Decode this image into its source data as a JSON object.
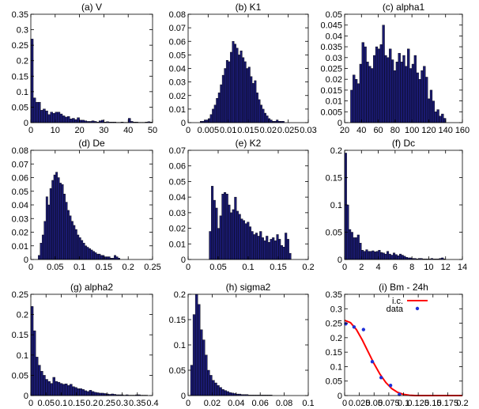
{
  "figure": {
    "background": "#ffffff",
    "bar_fill": "#1a1a70",
    "bar_stroke": "#000000",
    "curve_color": "#ff0000",
    "point_color": "#1f2fd8"
  },
  "chart_data": [
    {
      "type": "bar",
      "title": "(a) V",
      "xlim": [
        0,
        50
      ],
      "ylim": [
        0,
        0.35
      ],
      "xticks": [
        0,
        10,
        20,
        30,
        40,
        50
      ],
      "xtick_labels": [
        "0",
        "10",
        "20",
        "30",
        "40",
        "50"
      ],
      "yticks": [
        0,
        0.05,
        0.1,
        0.15,
        0.2,
        0.25,
        0.3,
        0.35
      ],
      "ytick_labels": [
        "0",
        "0.05",
        "0.1",
        "0.15",
        "0.2",
        "0.25",
        "0.3",
        "0.35"
      ],
      "bin_start": 0,
      "bin_width": 1,
      "values": [
        0.27,
        0.08,
        0.066,
        0.066,
        0.04,
        0.044,
        0.038,
        0.026,
        0.034,
        0.03,
        0.034,
        0.034,
        0.028,
        0.022,
        0.018,
        0.02,
        0.012,
        0.014,
        0.01,
        0.016,
        0.008,
        0.008,
        0.006,
        0.004,
        0.004,
        0.006,
        0.004,
        0.002,
        0.006,
        0.008,
        0.002,
        0.003,
        0.002,
        0.002,
        0.002,
        0.001,
        0.001,
        0.002,
        0.001,
        0.001,
        0.014,
        0.004,
        0.002,
        0.002,
        0.001,
        0.001,
        0.001,
        0.002,
        0.003,
        0.002
      ]
    },
    {
      "type": "bar",
      "title": "(b) K1",
      "xlim": [
        0,
        0.03
      ],
      "ylim": [
        0,
        0.08
      ],
      "xticks": [
        0,
        0.005,
        0.01,
        0.015,
        0.02,
        0.025,
        0.03
      ],
      "xtick_labels": [
        "0",
        "0.005",
        "0.01",
        "0.015",
        "0.02",
        "0.025",
        "0.03"
      ],
      "yticks": [
        0,
        0.01,
        0.02,
        0.03,
        0.04,
        0.05,
        0.06,
        0.07,
        0.08
      ],
      "ytick_labels": [
        "0",
        "0.01",
        "0.02",
        "0.03",
        "0.04",
        "0.05",
        "0.06",
        "0.07",
        "0.08"
      ],
      "bin_start": 0.003,
      "bin_width": 0.0005,
      "values": [
        0.001,
        0.001,
        0.002,
        0.002,
        0.003,
        0.006,
        0.01,
        0.013,
        0.018,
        0.022,
        0.028,
        0.035,
        0.04,
        0.046,
        0.045,
        0.052,
        0.06,
        0.058,
        0.055,
        0.05,
        0.053,
        0.048,
        0.045,
        0.04,
        0.041,
        0.034,
        0.029,
        0.031,
        0.022,
        0.017,
        0.013,
        0.01,
        0.007,
        0.005,
        0.003,
        0.002,
        0.001,
        0.001,
        0.002,
        0.001,
        0.001,
        0.001
      ]
    },
    {
      "type": "bar",
      "title": "(c) alpha1",
      "xlim": [
        20,
        160
      ],
      "ylim": [
        0,
        0.05
      ],
      "xticks": [
        20,
        40,
        60,
        80,
        100,
        120,
        140,
        160
      ],
      "xtick_labels": [
        "20",
        "40",
        "60",
        "80",
        "100",
        "120",
        "140",
        "160"
      ],
      "yticks": [
        0,
        0.005,
        0.01,
        0.015,
        0.02,
        0.025,
        0.03,
        0.035,
        0.04,
        0.045,
        0.05
      ],
      "ytick_labels": [
        "0",
        "0.005",
        "0.01",
        "0.015",
        "0.02",
        "0.025",
        "0.03",
        "0.035",
        "0.04",
        "0.045",
        "0.05"
      ],
      "bin_start": 27,
      "bin_width": 2.7,
      "values": [
        0.015,
        0.022,
        0.02,
        0.018,
        0.027,
        0.037,
        0.035,
        0.028,
        0.026,
        0.025,
        0.031,
        0.035,
        0.034,
        0.036,
        0.045,
        0.031,
        0.03,
        0.034,
        0.029,
        0.024,
        0.028,
        0.032,
        0.028,
        0.031,
        0.026,
        0.034,
        0.025,
        0.027,
        0.031,
        0.023,
        0.02,
        0.024,
        0.026,
        0.021,
        0.011,
        0.015,
        0.01,
        0.005,
        0.006,
        0.003,
        0.004,
        0.002
      ]
    },
    {
      "type": "bar",
      "title": "(d) De",
      "xlim": [
        0,
        0.25
      ],
      "ylim": [
        0,
        0.08
      ],
      "xticks": [
        0,
        0.05,
        0.1,
        0.15,
        0.2,
        0.25
      ],
      "xtick_labels": [
        "0",
        "0.05",
        "0.1",
        "0.15",
        "0.2",
        "0.25"
      ],
      "yticks": [
        0,
        0.01,
        0.02,
        0.03,
        0.04,
        0.05,
        0.06,
        0.07,
        0.08
      ],
      "ytick_labels": [
        "0",
        "0.01",
        "0.02",
        "0.03",
        "0.04",
        "0.05",
        "0.06",
        "0.07",
        "0.08"
      ],
      "bin_start": 0.015,
      "bin_width": 0.004,
      "values": [
        0.003,
        0.012,
        0.018,
        0.028,
        0.046,
        0.04,
        0.052,
        0.058,
        0.062,
        0.064,
        0.06,
        0.056,
        0.055,
        0.048,
        0.042,
        0.036,
        0.032,
        0.028,
        0.025,
        0.022,
        0.018,
        0.016,
        0.014,
        0.012,
        0.01,
        0.009,
        0.008,
        0.007,
        0.006,
        0.005,
        0.004,
        0.004,
        0.003,
        0.003,
        0.002,
        0.002,
        0.002,
        0.001,
        0.001,
        0.003,
        0.002,
        0.001
      ]
    },
    {
      "type": "bar",
      "title": "(e) K2",
      "xlim": [
        0,
        0.2
      ],
      "ylim": [
        0,
        0.07
      ],
      "xticks": [
        0,
        0.05,
        0.1,
        0.15,
        0.2
      ],
      "xtick_labels": [
        "0",
        "0.05",
        "0.1",
        "0.15",
        "0.2"
      ],
      "yticks": [
        0,
        0.01,
        0.02,
        0.03,
        0.04,
        0.05,
        0.06,
        0.07
      ],
      "ytick_labels": [
        "0",
        "0.01",
        "0.02",
        "0.03",
        "0.04",
        "0.05",
        "0.06",
        "0.07"
      ],
      "bin_start": 0.035,
      "bin_width": 0.0035,
      "values": [
        0.018,
        0.047,
        0.038,
        0.033,
        0.02,
        0.028,
        0.042,
        0.043,
        0.042,
        0.035,
        0.03,
        0.032,
        0.04,
        0.031,
        0.029,
        0.026,
        0.025,
        0.023,
        0.024,
        0.021,
        0.018,
        0.016,
        0.017,
        0.015,
        0.018,
        0.014,
        0.012,
        0.015,
        0.011,
        0.013,
        0.014,
        0.012,
        0.016,
        0.013,
        0.009,
        0.008,
        0.017,
        0.013,
        0.004
      ]
    },
    {
      "type": "bar",
      "title": "(f) Dc",
      "xlim": [
        0,
        14
      ],
      "ylim": [
        0,
        0.2
      ],
      "xticks": [
        0,
        2,
        4,
        6,
        8,
        10,
        12,
        14
      ],
      "xtick_labels": [
        "0",
        "2",
        "4",
        "6",
        "8",
        "10",
        "12",
        "14"
      ],
      "yticks": [
        0,
        0.05,
        0.1,
        0.15,
        0.2
      ],
      "ytick_labels": [
        "0",
        "0.05",
        "0.1",
        "0.15",
        "0.2"
      ],
      "bin_start": 0,
      "bin_width": 0.25,
      "values": [
        0.195,
        0.1,
        0.055,
        0.05,
        0.04,
        0.04,
        0.045,
        0.03,
        0.017,
        0.015,
        0.018,
        0.015,
        0.015,
        0.016,
        0.014,
        0.015,
        0.017,
        0.013,
        0.012,
        0.01,
        0.015,
        0.01,
        0.008,
        0.012,
        0.009,
        0.007,
        0.01,
        0.008,
        0.006,
        0.004,
        0.003,
        0.003,
        0.002,
        0.002,
        0.001,
        0.002,
        0.002,
        0.001,
        0.001,
        0.001,
        0.001,
        0.002,
        0.001,
        0.001,
        0.001,
        0.002,
        0.003,
        0.001
      ]
    },
    {
      "type": "bar",
      "title": "(g) alpha2",
      "xlim": [
        0,
        0.4
      ],
      "ylim": [
        0,
        0.25
      ],
      "xticks": [
        0,
        0.05,
        0.1,
        0.15,
        0.2,
        0.25,
        0.3,
        0.35,
        0.4
      ],
      "xtick_labels": [
        "0",
        "0.05",
        "0.1",
        "0.15",
        "0.2",
        "0.25",
        "0.3",
        "0.35",
        "0.4"
      ],
      "yticks": [
        0,
        0.05,
        0.1,
        0.15,
        0.2,
        0.25
      ],
      "ytick_labels": [
        "0",
        "0.05",
        "0.1",
        "0.15",
        "0.2",
        "0.25"
      ],
      "bin_start": 0,
      "bin_width": 0.008,
      "values": [
        0.22,
        0.16,
        0.095,
        0.075,
        0.06,
        0.05,
        0.04,
        0.035,
        0.03,
        0.045,
        0.035,
        0.033,
        0.03,
        0.028,
        0.029,
        0.025,
        0.028,
        0.022,
        0.02,
        0.017,
        0.017,
        0.015,
        0.012,
        0.01,
        0.013,
        0.01,
        0.008,
        0.007,
        0.006,
        0.006,
        0.005,
        0.004,
        0.003,
        0.004,
        0.003,
        0.002,
        0.002,
        0.002,
        0.001,
        0.002,
        0.001,
        0.001,
        0.001,
        0.002,
        0.002,
        0.001,
        0.001,
        0.001
      ]
    },
    {
      "type": "bar",
      "title": "(h) sigma2",
      "xlim": [
        0,
        0.1
      ],
      "ylim": [
        0,
        0.2
      ],
      "xticks": [
        0,
        0.02,
        0.04,
        0.06,
        0.08,
        0.1
      ],
      "xtick_labels": [
        "0",
        "0.02",
        "0.04",
        "0.06",
        "0.08",
        "0.1"
      ],
      "yticks": [
        0,
        0.05,
        0.1,
        0.15,
        0.2
      ],
      "ytick_labels": [
        "0",
        "0.05",
        "0.1",
        "0.15",
        "0.2"
      ],
      "bin_start": 0.002,
      "bin_width": 0.002,
      "values": [
        0.06,
        0.16,
        0.2,
        0.18,
        0.13,
        0.11,
        0.08,
        0.05,
        0.04,
        0.03,
        0.025,
        0.02,
        0.016,
        0.012,
        0.01,
        0.008,
        0.006,
        0.005,
        0.004,
        0.003,
        0.003,
        0.002,
        0.002,
        0.002,
        0.001,
        0.001,
        0.001,
        0.001,
        0.001,
        0.001,
        0.001,
        0.001,
        0.001,
        0.001
      ]
    },
    {
      "type": "line",
      "title": "(i) Bm - 24h",
      "xlim": [
        0,
        0.2
      ],
      "ylim": [
        0,
        0.35
      ],
      "xticks": [
        0,
        0.025,
        0.05,
        0.075,
        0.1,
        0.125,
        0.15,
        0.175,
        0.2
      ],
      "xtick_labels": [
        "0",
        "0.025",
        "0.05",
        "0.075",
        "0.1",
        "0.125",
        "0.15",
        "0.175",
        "0.2"
      ],
      "yticks": [
        0,
        0.05,
        0.1,
        0.15,
        0.2,
        0.25,
        0.3,
        0.35
      ],
      "ytick_labels": [
        "0",
        "0.05",
        "0.1",
        "0.15",
        "0.2",
        "0.25",
        "0.3",
        "0.35"
      ],
      "legend_position": "top-right",
      "series": [
        {
          "name": "i.c.",
          "kind": "line",
          "x": [
            0,
            0.01,
            0.02,
            0.03,
            0.04,
            0.05,
            0.06,
            0.07,
            0.08,
            0.09,
            0.1,
            0.11,
            0.12,
            0.13,
            0.14,
            0.15,
            0.16,
            0.17,
            0.18,
            0.19,
            0.2
          ],
          "y": [
            0.26,
            0.252,
            0.228,
            0.192,
            0.151,
            0.11,
            0.074,
            0.045,
            0.024,
            0.011,
            0.004,
            0.001,
            0,
            0,
            0,
            0,
            0,
            0,
            0,
            0,
            0
          ]
        },
        {
          "name": "data",
          "kind": "points",
          "x": [
            0.002,
            0.016,
            0.032,
            0.047,
            0.062,
            0.078,
            0.093
          ],
          "y": [
            0.248,
            0.237,
            0.228,
            0.117,
            0.062,
            0.035,
            0.004
          ]
        }
      ]
    }
  ]
}
